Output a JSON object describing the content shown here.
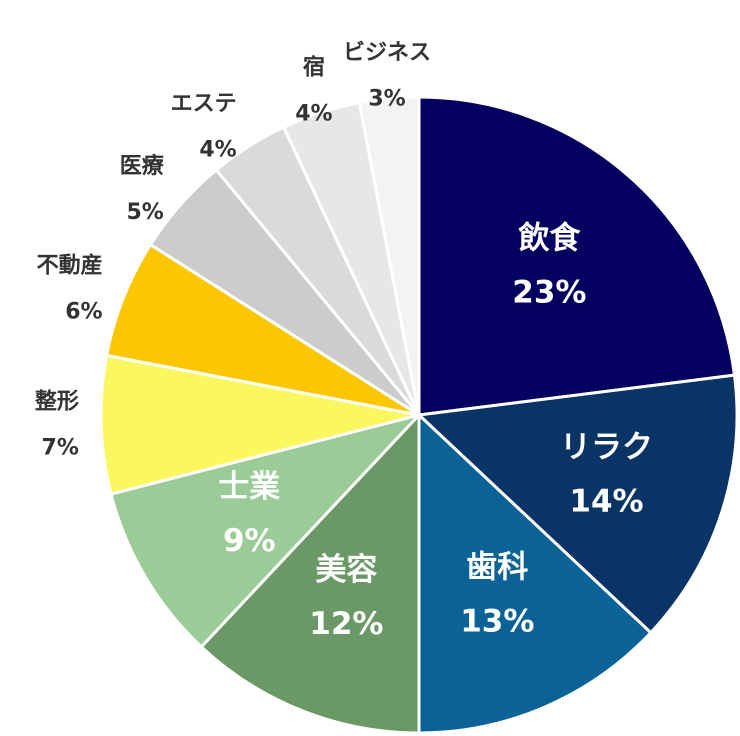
{
  "chart_data": {
    "type": "pie",
    "slices": [
      {
        "label": "飲食",
        "value": 23,
        "value_label": "23%",
        "color": "#030060",
        "label_position": "inside"
      },
      {
        "label": "リラク",
        "value": 14,
        "value_label": "14%",
        "color": "#0B3466",
        "label_position": "inside"
      },
      {
        "label": "歯科",
        "value": 13,
        "value_label": "13%",
        "color": "#0A6297",
        "label_position": "inside"
      },
      {
        "label": "美容",
        "value": 12,
        "value_label": "12%",
        "color": "#6B9966",
        "label_position": "inside"
      },
      {
        "label": "士業",
        "value": 9,
        "value_label": "9%",
        "color": "#9BCB97",
        "label_position": "inside"
      },
      {
        "label": "整形",
        "value": 7,
        "value_label": "7%",
        "color": "#FBF75E",
        "label_position": "outside"
      },
      {
        "label": "不動産",
        "value": 6,
        "value_label": "6%",
        "color": "#FCC600",
        "label_position": "outside"
      },
      {
        "label": "医療",
        "value": 5,
        "value_label": "5%",
        "color": "#CCCCCC",
        "label_position": "outside"
      },
      {
        "label": "エステ",
        "value": 4,
        "value_label": "4%",
        "color": "#DADADA",
        "label_position": "outside"
      },
      {
        "label": "宿",
        "value": 4,
        "value_label": "4%",
        "color": "#E7E7E7",
        "label_position": "outside"
      },
      {
        "label": "ビジネス",
        "value": 3,
        "value_label": "3%",
        "color": "#F3F3F3",
        "label_position": "outside"
      }
    ],
    "start": "12 o'clock",
    "direction": "clockwise",
    "legend": "none"
  }
}
